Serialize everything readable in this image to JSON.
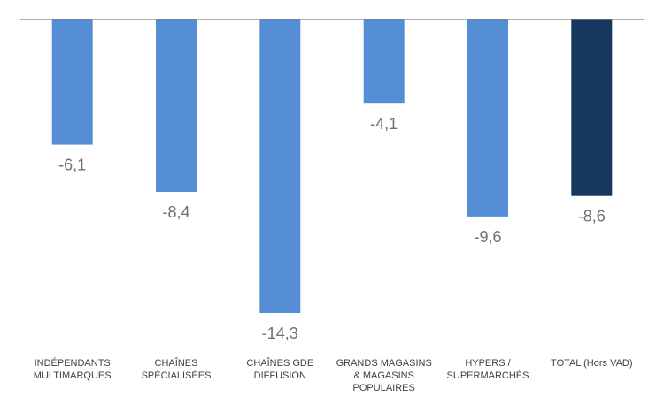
{
  "chart_data": {
    "type": "bar",
    "title": "",
    "xlabel": "",
    "ylabel": "",
    "categories": [
      [
        "INDÉPENDANTS",
        "MULTIMARQUES"
      ],
      [
        "CHAÎNES",
        "SPÉCIALISÉES"
      ],
      [
        "CHAÎNES GDE",
        "DIFFUSION"
      ],
      [
        "GRANDS MAGASINS",
        "& MAGASINS",
        "POPULAIRES"
      ],
      [
        "HYPERS /",
        "SUPERMARCHÉS"
      ],
      [
        "TOTAL (Hors VAD)"
      ]
    ],
    "values": [
      -6.1,
      -8.4,
      -14.3,
      -4.1,
      -9.6,
      -8.6
    ],
    "value_labels": [
      "-6,1",
      "-8,4",
      "-14,3",
      "-4,1",
      "-9,6",
      "-8,6"
    ],
    "ylim": [
      -14.3,
      0
    ],
    "grid": false,
    "legend": "none",
    "colors": {
      "bar": "#558ed5",
      "highlight": "#17375e",
      "axis": "#808080"
    },
    "highlight_index": 5
  }
}
